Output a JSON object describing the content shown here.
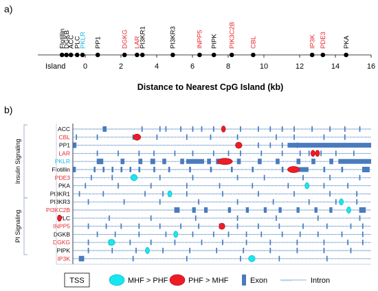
{
  "colors": {
    "black": "#000000",
    "red": "#e8262b",
    "cyan": "#1ab6e6",
    "exon": "#4a7bbf",
    "intron": "#8fb0d8",
    "bracket": "#9aaac2",
    "mhf_fill": "#18e6f0",
    "phf_fill": "#ee1c25"
  },
  "panel_a": {
    "label": "a)",
    "genes": [
      {
        "name": "Flotillin",
        "x": -1.3,
        "color": "black"
      },
      {
        "name": "DGKB",
        "x": -1.05,
        "color": "black"
      },
      {
        "name": "ACC",
        "x": -0.8,
        "color": "black"
      },
      {
        "name": "PLC",
        "x": -0.45,
        "color": "black"
      },
      {
        "name": "PKLR",
        "x": -0.15,
        "color": "cyan"
      },
      {
        "name": "PP1",
        "x": 0.7,
        "color": "black"
      },
      {
        "name": "DGKG",
        "x": 2.2,
        "color": "red"
      },
      {
        "name": "LAR",
        "x": 2.9,
        "color": "red"
      },
      {
        "name": "PI3KR1",
        "x": 3.2,
        "color": "black"
      },
      {
        "name": "PI3KR3",
        "x": 4.9,
        "color": "black"
      },
      {
        "name": "INPP5",
        "x": 6.4,
        "color": "red"
      },
      {
        "name": "PIPK",
        "x": 7.2,
        "color": "black"
      },
      {
        "name": "PIK3C2B",
        "x": 8.2,
        "color": "red"
      },
      {
        "name": "CBL",
        "x": 9.4,
        "color": "red"
      },
      {
        "name": "IP3K",
        "x": 12.7,
        "color": "red"
      },
      {
        "name": "PDE3",
        "x": 13.3,
        "color": "red"
      },
      {
        "name": "PKA",
        "x": 14.6,
        "color": "black"
      }
    ],
    "island_label": "Island",
    "ticks": [
      "0",
      "2",
      "4",
      "6",
      "8",
      "10",
      "12",
      "14",
      "16"
    ],
    "axis_title": "Distance to Nearest CpG Island (kb)"
  },
  "panel_b": {
    "label": "b)",
    "groups": [
      {
        "name": "Insulin Signaling",
        "from": 0,
        "to": 9
      },
      {
        "name": "PI Signaling",
        "from": 9,
        "to": 16
      }
    ],
    "rows": [
      {
        "name": "ACC",
        "color": "black",
        "exons": [
          [
            0.1,
            0.013
          ],
          [
            0.23,
            0.004
          ],
          [
            0.29,
            0.004
          ],
          [
            0.31,
            0.004
          ],
          [
            0.36,
            0.004
          ],
          [
            0.4,
            0.004
          ],
          [
            0.43,
            0.004
          ],
          [
            0.47,
            0.004
          ],
          [
            0.5,
            0.004
          ],
          [
            0.56,
            0.004
          ],
          [
            0.62,
            0.004
          ],
          [
            0.66,
            0.004
          ],
          [
            0.7,
            0.004
          ],
          [
            0.74,
            0.004
          ],
          [
            0.8,
            0.004
          ],
          [
            0.86,
            0.004
          ],
          [
            0.91,
            0.004
          ],
          [
            0.96,
            0.004
          ]
        ],
        "big": [],
        "marks": [
          {
            "type": "PHF",
            "pos": 0.505,
            "w": 0.012
          }
        ]
      },
      {
        "name": "CBL",
        "color": "red",
        "exons": [
          [
            0.01,
            0.004
          ],
          [
            0.08,
            0.004
          ],
          [
            0.2,
            0.004
          ],
          [
            0.28,
            0.004
          ],
          [
            0.38,
            0.004
          ],
          [
            0.46,
            0.004
          ],
          [
            0.55,
            0.004
          ],
          [
            0.68,
            0.004
          ],
          [
            0.74,
            0.004
          ],
          [
            0.84,
            0.004
          ],
          [
            0.91,
            0.004
          ]
        ],
        "big": [],
        "marks": [
          {
            "type": "PHF",
            "pos": 0.215,
            "w": 0.025
          }
        ]
      },
      {
        "name": "PP1",
        "color": "black",
        "exons": [
          [
            0.0,
            0.012
          ],
          [
            0.62,
            0.004
          ],
          [
            0.66,
            0.004
          ],
          [
            0.7,
            0.004
          ],
          [
            0.75,
            0.004
          ]
        ],
        "big": [
          [
            0.72,
            0.28
          ]
        ],
        "marks": [
          {
            "type": "PHF",
            "pos": 0.556,
            "w": 0.022
          }
        ]
      },
      {
        "name": "LAR",
        "color": "red",
        "exons": [
          [
            0.08,
            0.004
          ],
          [
            0.15,
            0.004
          ],
          [
            0.22,
            0.004
          ],
          [
            0.27,
            0.004
          ],
          [
            0.34,
            0.004
          ],
          [
            0.4,
            0.004
          ],
          [
            0.47,
            0.004
          ],
          [
            0.52,
            0.004
          ],
          [
            0.56,
            0.004
          ],
          [
            0.63,
            0.004
          ],
          [
            0.7,
            0.004
          ],
          [
            0.76,
            0.004
          ],
          [
            0.79,
            0.004
          ],
          [
            0.83,
            0.004
          ],
          [
            0.88,
            0.004
          ],
          [
            0.94,
            0.004
          ]
        ],
        "big": [],
        "marks": [
          {
            "type": "PHF",
            "pos": 0.805,
            "w": 0.014
          },
          {
            "type": "PHF",
            "pos": 0.82,
            "w": 0.014
          }
        ]
      },
      {
        "name": "PKLR",
        "color": "cyan",
        "exons": [
          [
            0.08,
            0.022
          ],
          [
            0.16,
            0.013
          ],
          [
            0.22,
            0.013
          ],
          [
            0.26,
            0.016
          ],
          [
            0.3,
            0.013
          ],
          [
            0.36,
            0.013
          ],
          [
            0.45,
            0.013
          ],
          [
            0.48,
            0.013
          ],
          [
            0.55,
            0.013
          ],
          [
            0.62,
            0.013
          ],
          [
            0.68,
            0.013
          ],
          [
            0.75,
            0.013
          ],
          [
            0.8,
            0.013
          ],
          [
            0.86,
            0.013
          ]
        ],
        "big": [
          [
            0.38,
            0.06
          ],
          [
            0.89,
            0.11
          ]
        ],
        "marks": [
          {
            "type": "PHF",
            "pos": 0.51,
            "w": 0.05
          }
        ]
      },
      {
        "name": "Flotillin",
        "color": "black",
        "exons": [
          [
            0.0,
            0.01
          ],
          [
            0.07,
            0.006
          ],
          [
            0.1,
            0.006
          ],
          [
            0.13,
            0.006
          ],
          [
            0.16,
            0.006
          ],
          [
            0.19,
            0.006
          ],
          [
            0.22,
            0.006
          ],
          [
            0.27,
            0.006
          ],
          [
            0.32,
            0.006
          ],
          [
            0.39,
            0.006
          ],
          [
            0.46,
            0.006
          ],
          [
            0.53,
            0.006
          ],
          [
            0.6,
            0.006
          ],
          [
            0.7,
            0.006
          ],
          [
            0.73,
            0.006
          ],
          [
            0.84,
            0.006
          ],
          [
            0.9,
            0.006
          ],
          [
            0.97,
            0.025
          ]
        ],
        "big": [
          [
            0.73,
            0.06
          ]
        ],
        "marks": [
          {
            "type": "PHF",
            "pos": 0.74,
            "w": 0.04
          }
        ]
      },
      {
        "name": "PDE3",
        "color": "red",
        "exons": [
          [
            0.06,
            0.004
          ],
          [
            0.13,
            0.004
          ],
          [
            0.29,
            0.004
          ],
          [
            0.4,
            0.004
          ],
          [
            0.55,
            0.004
          ],
          [
            0.64,
            0.004
          ],
          [
            0.77,
            0.004
          ],
          [
            0.86,
            0.004
          ],
          [
            0.96,
            0.004
          ]
        ],
        "big": [],
        "marks": [
          {
            "type": "MHF",
            "pos": 0.205,
            "w": 0.022
          }
        ]
      },
      {
        "name": "PKA",
        "color": "black",
        "exons": [
          [
            0.04,
            0.004
          ],
          [
            0.15,
            0.004
          ],
          [
            0.26,
            0.004
          ],
          [
            0.38,
            0.004
          ],
          [
            0.49,
            0.004
          ],
          [
            0.6,
            0.004
          ],
          [
            0.72,
            0.004
          ],
          [
            0.84,
            0.004
          ],
          [
            0.92,
            0.004
          ]
        ],
        "big": [],
        "marks": [
          {
            "type": "MHF",
            "pos": 0.785,
            "w": 0.012
          }
        ]
      },
      {
        "name": "PI3KR1",
        "color": "black",
        "exons": [
          [
            0.02,
            0.004
          ],
          [
            0.1,
            0.004
          ],
          [
            0.24,
            0.004
          ],
          [
            0.3,
            0.004
          ],
          [
            0.38,
            0.004
          ],
          [
            0.5,
            0.004
          ],
          [
            0.62,
            0.004
          ],
          [
            0.74,
            0.004
          ],
          [
            0.86,
            0.004
          ],
          [
            0.95,
            0.004
          ]
        ],
        "big": [],
        "marks": [
          {
            "type": "MHF",
            "pos": 0.325,
            "w": 0.012
          }
        ]
      },
      {
        "name": "PI3KR3",
        "color": "black",
        "exons": [
          [
            0.05,
            0.004
          ],
          [
            0.17,
            0.004
          ],
          [
            0.29,
            0.004
          ],
          [
            0.42,
            0.004
          ],
          [
            0.55,
            0.004
          ],
          [
            0.67,
            0.004
          ],
          [
            0.79,
            0.004
          ],
          [
            0.88,
            0.004
          ],
          [
            0.95,
            0.004
          ]
        ],
        "big": [],
        "marks": [
          {
            "type": "MHF",
            "pos": 0.9,
            "w": 0.012
          }
        ]
      },
      {
        "name": "PI3KC2B",
        "color": "red",
        "exons": [
          [
            0.34,
            0.018
          ],
          [
            0.4,
            0.012
          ],
          [
            0.44,
            0.012
          ],
          [
            0.52,
            0.01
          ],
          [
            0.58,
            0.01
          ],
          [
            0.64,
            0.01
          ],
          [
            0.69,
            0.01
          ],
          [
            0.75,
            0.01
          ],
          [
            0.81,
            0.01
          ],
          [
            0.86,
            0.01
          ],
          [
            0.96,
            0.022
          ]
        ],
        "big": [],
        "marks": [
          {
            "type": "MHF",
            "pos": 0.925,
            "w": 0.014
          }
        ]
      },
      {
        "name": "PLC",
        "color": "black",
        "exons": [
          [
            0.12,
            0.004
          ],
          [
            0.26,
            0.004
          ],
          [
            0.41,
            0.004
          ],
          [
            0.55,
            0.004
          ],
          [
            0.68,
            0.004
          ],
          [
            0.82,
            0.004
          ],
          [
            0.96,
            0.004
          ]
        ],
        "big": [],
        "marks": [
          {
            "type": "PHF",
            "pos": -0.045,
            "w": 0.012
          }
        ]
      },
      {
        "name": "INPP5",
        "color": "red",
        "exons": [
          [
            0.05,
            0.004
          ],
          [
            0.11,
            0.004
          ],
          [
            0.16,
            0.004
          ],
          [
            0.22,
            0.004
          ],
          [
            0.29,
            0.004
          ],
          [
            0.36,
            0.004
          ],
          [
            0.42,
            0.004
          ],
          [
            0.49,
            0.004
          ],
          [
            0.55,
            0.004
          ],
          [
            0.62,
            0.004
          ],
          [
            0.69,
            0.004
          ],
          [
            0.77,
            0.004
          ],
          [
            0.85,
            0.004
          ],
          [
            0.93,
            0.004
          ],
          [
            0.97,
            0.004
          ]
        ],
        "big": [],
        "marks": [
          {
            "type": "PHF",
            "pos": 0.5,
            "w": 0.02
          }
        ]
      },
      {
        "name": "DGKB",
        "color": "black",
        "exons": [
          [
            0.08,
            0.004
          ],
          [
            0.14,
            0.004
          ],
          [
            0.22,
            0.004
          ],
          [
            0.31,
            0.004
          ],
          [
            0.4,
            0.004
          ],
          [
            0.47,
            0.004
          ],
          [
            0.52,
            0.004
          ],
          [
            0.58,
            0.004
          ],
          [
            0.63,
            0.004
          ],
          [
            0.7,
            0.004
          ],
          [
            0.76,
            0.004
          ],
          [
            0.82,
            0.004
          ],
          [
            0.9,
            0.004
          ],
          [
            0.97,
            0.004
          ]
        ],
        "big": [],
        "marks": [
          {
            "type": "MHF",
            "pos": 0.345,
            "w": 0.008
          }
        ]
      },
      {
        "name": "DGKG",
        "color": "red",
        "exons": [
          [
            0.05,
            0.004
          ],
          [
            0.12,
            0.004
          ],
          [
            0.19,
            0.004
          ],
          [
            0.26,
            0.004
          ],
          [
            0.34,
            0.004
          ],
          [
            0.43,
            0.004
          ],
          [
            0.5,
            0.004
          ],
          [
            0.58,
            0.004
          ],
          [
            0.66,
            0.004
          ],
          [
            0.75,
            0.004
          ],
          [
            0.84,
            0.004
          ],
          [
            0.92,
            0.004
          ],
          [
            0.97,
            0.004
          ]
        ],
        "big": [],
        "marks": [
          {
            "type": "MHF",
            "pos": 0.13,
            "w": 0.022
          }
        ]
      },
      {
        "name": "PIPK",
        "color": "black",
        "exons": [
          [
            0.05,
            0.004
          ],
          [
            0.13,
            0.004
          ],
          [
            0.21,
            0.004
          ],
          [
            0.3,
            0.004
          ],
          [
            0.39,
            0.004
          ],
          [
            0.48,
            0.004
          ],
          [
            0.57,
            0.004
          ],
          [
            0.66,
            0.004
          ],
          [
            0.75,
            0.004
          ],
          [
            0.84,
            0.004
          ],
          [
            0.93,
            0.004
          ]
        ],
        "big": [],
        "marks": [
          {
            "type": "MHF",
            "pos": 0.25,
            "w": 0.012
          }
        ]
      },
      {
        "name": "IP3K",
        "color": "red",
        "exons": [
          [
            0.02,
            0.018
          ],
          [
            0.2,
            0.004
          ],
          [
            0.38,
            0.004
          ],
          [
            0.56,
            0.004
          ],
          [
            0.69,
            0.004
          ],
          [
            0.85,
            0.004
          ]
        ],
        "big": [],
        "marks": [
          {
            "type": "MHF",
            "pos": 0.6,
            "w": 0.022
          }
        ]
      }
    ],
    "legend": {
      "tss": "TSS",
      "mhf": "MHF > PHF",
      "phf": "PHF > MHF",
      "exon": "Exon",
      "intron": "Intron"
    }
  }
}
